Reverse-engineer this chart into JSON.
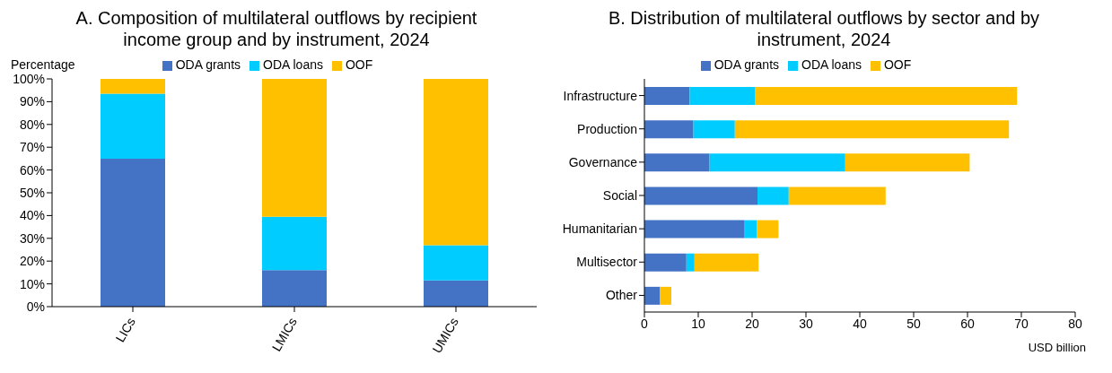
{
  "chart_data": [
    {
      "type": "bar",
      "title": "A. Composition of multilateral outflows by recipient income group and by instrument, 2024",
      "ylabel": "Percentage",
      "categories": [
        "LICs",
        "LMICs",
        "UMICs"
      ],
      "stacked": true,
      "legend": "top",
      "series": [
        {
          "name": "ODA grants",
          "color": "#4472c4",
          "values": [
            65,
            16,
            11.5
          ]
        },
        {
          "name": "ODA loans",
          "color": "#00ccff",
          "values": [
            28.5,
            23.5,
            15.5
          ]
        },
        {
          "name": "OOF",
          "color": "#ffc000",
          "values": [
            6.5,
            60.5,
            73
          ]
        }
      ],
      "ylim": [
        0,
        100
      ],
      "yticks": [
        {
          "value": 0,
          "label": "0%"
        },
        {
          "value": 10,
          "label": "10%"
        },
        {
          "value": 20,
          "label": "20%"
        },
        {
          "value": 30,
          "label": "30%"
        },
        {
          "value": 40,
          "label": "40%"
        },
        {
          "value": 50,
          "label": "50%"
        },
        {
          "value": 60,
          "label": "60%"
        },
        {
          "value": 70,
          "label": "70%"
        },
        {
          "value": 80,
          "label": "80%"
        },
        {
          "value": 90,
          "label": "90%"
        },
        {
          "value": 100,
          "label": "100%"
        }
      ],
      "grid": false
    },
    {
      "type": "bar",
      "title": "B. Distribution of multilateral outflows by sector and by instrument, 2024",
      "xlabel": "USD billion",
      "categories": [
        "Infrastructure",
        "Production",
        "Governance",
        "Social",
        "Humanitarian",
        "Multisector",
        "Other"
      ],
      "stacked": true,
      "orientation": "horizontal",
      "legend": "top",
      "series": [
        {
          "name": "ODA grants",
          "color": "#4472c4",
          "values": [
            8.4,
            9.1,
            12.1,
            21.0,
            18.5,
            7.8,
            2.9
          ]
        },
        {
          "name": "ODA loans",
          "color": "#00ccff",
          "values": [
            12.1,
            7.7,
            25.2,
            5.8,
            2.4,
            1.5,
            0
          ]
        },
        {
          "name": "OOF",
          "color": "#ffc000",
          "values": [
            48.7,
            50.9,
            23.1,
            18.0,
            4.0,
            11.9,
            2.1
          ]
        }
      ],
      "xlim": [
        0,
        80
      ],
      "xticks": [
        0,
        10,
        20,
        30,
        40,
        50,
        60,
        70,
        80
      ],
      "grid": false
    }
  ]
}
